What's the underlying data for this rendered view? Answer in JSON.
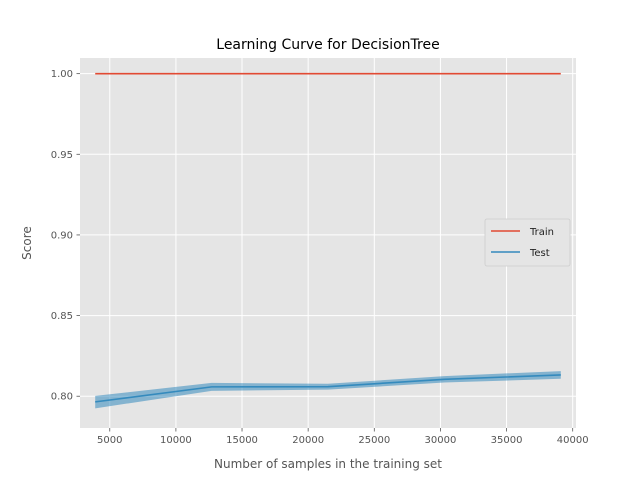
{
  "chart_data": {
    "type": "line",
    "title": "Learning Curve for DecisionTree",
    "xlabel": "Number of samples in the training set",
    "ylabel": "Score",
    "xlim": [
      2750,
      40250
    ],
    "ylim": [
      0.7803,
      1.0097
    ],
    "xticks": [
      5000,
      10000,
      15000,
      20000,
      25000,
      30000,
      35000,
      40000
    ],
    "xtick_labels": [
      "5000",
      "10000",
      "15000",
      "20000",
      "25000",
      "30000",
      "35000",
      "40000"
    ],
    "yticks": [
      0.8,
      0.85,
      0.9,
      0.95,
      1.0
    ],
    "ytick_labels": [
      "0.80",
      "0.85",
      "0.90",
      "0.95",
      "1.00"
    ],
    "grid": true,
    "legend_position": "center-right",
    "x": [
      3900,
      12700,
      21500,
      30300,
      39100
    ],
    "series": [
      {
        "name": "Train",
        "color": "#e24a33",
        "values": [
          1.0,
          1.0,
          1.0,
          1.0,
          1.0
        ],
        "lower": [
          1.0,
          1.0,
          1.0,
          1.0,
          1.0
        ],
        "upper": [
          1.0,
          1.0,
          1.0,
          1.0,
          1.0
        ]
      },
      {
        "name": "Test",
        "color": "#348abd",
        "values": [
          0.7965,
          0.8058,
          0.8059,
          0.8105,
          0.8132
        ],
        "lower": [
          0.7925,
          0.8033,
          0.8041,
          0.8085,
          0.8108
        ],
        "upper": [
          0.8002,
          0.8083,
          0.8077,
          0.8125,
          0.8156
        ]
      }
    ]
  }
}
